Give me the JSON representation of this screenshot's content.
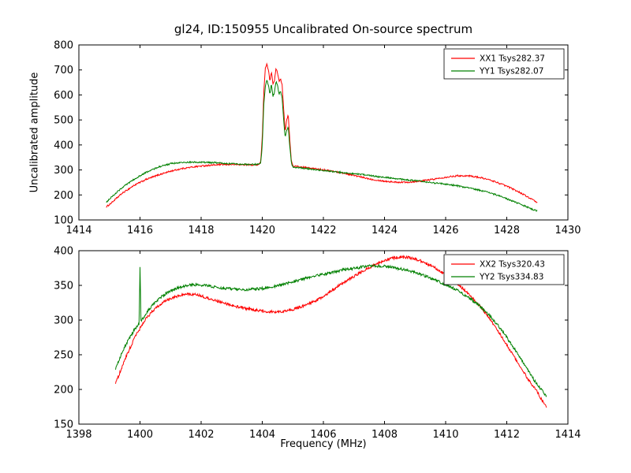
{
  "figure": {
    "title": "gl24, ID:150955 Uncalibrated On-source spectrum",
    "background": "#ffffff"
  },
  "chart_data": [
    {
      "type": "line",
      "title": "gl24, ID:150955 Uncalibrated On-source spectrum",
      "xlabel": "",
      "ylabel": "Uncalibrated amplitude",
      "xlim": [
        1414,
        1430
      ],
      "ylim": [
        100,
        800
      ],
      "xticks": [
        1414,
        1416,
        1418,
        1420,
        1422,
        1424,
        1426,
        1428,
        1430
      ],
      "yticks": [
        100,
        200,
        300,
        400,
        500,
        600,
        700,
        800
      ],
      "grid": false,
      "legend_position": "upper right",
      "series": [
        {
          "name": "XX1 Tsys282.37",
          "color": "#ff0000",
          "noise": 3,
          "points": [
            [
              1414.9,
              152
            ],
            [
              1415.1,
              172
            ],
            [
              1415.4,
              205
            ],
            [
              1415.8,
              238
            ],
            [
              1416.2,
              262
            ],
            [
              1416.6,
              280
            ],
            [
              1417.0,
              295
            ],
            [
              1417.4,
              306
            ],
            [
              1417.8,
              313
            ],
            [
              1418.2,
              318
            ],
            [
              1418.6,
              321
            ],
            [
              1419.0,
              322
            ],
            [
              1419.4,
              321
            ],
            [
              1419.7,
              320
            ],
            [
              1419.9,
              322
            ],
            [
              1419.95,
              335
            ],
            [
              1420.0,
              430
            ],
            [
              1420.05,
              610
            ],
            [
              1420.1,
              705
            ],
            [
              1420.15,
              722
            ],
            [
              1420.2,
              700
            ],
            [
              1420.25,
              655
            ],
            [
              1420.3,
              695
            ],
            [
              1420.35,
              645
            ],
            [
              1420.4,
              660
            ],
            [
              1420.45,
              705
            ],
            [
              1420.5,
              690
            ],
            [
              1420.55,
              655
            ],
            [
              1420.6,
              665
            ],
            [
              1420.65,
              640
            ],
            [
              1420.7,
              545
            ],
            [
              1420.75,
              450
            ],
            [
              1420.8,
              500
            ],
            [
              1420.85,
              520
            ],
            [
              1420.9,
              420
            ],
            [
              1420.95,
              340
            ],
            [
              1421.0,
              316
            ],
            [
              1421.3,
              311
            ],
            [
              1421.6,
              307
            ],
            [
              1422.0,
              301
            ],
            [
              1422.4,
              293
            ],
            [
              1422.8,
              284
            ],
            [
              1423.2,
              272
            ],
            [
              1423.6,
              262
            ],
            [
              1424.0,
              255
            ],
            [
              1424.4,
              251
            ],
            [
              1424.8,
              251
            ],
            [
              1425.2,
              256
            ],
            [
              1425.6,
              263
            ],
            [
              1426.0,
              271
            ],
            [
              1426.4,
              277
            ],
            [
              1426.8,
              276
            ],
            [
              1427.2,
              268
            ],
            [
              1427.6,
              254
            ],
            [
              1428.0,
              235
            ],
            [
              1428.4,
              212
            ],
            [
              1428.8,
              184
            ],
            [
              1429.0,
              168
            ]
          ]
        },
        {
          "name": "YY1 Tsys282.07",
          "color": "#008000",
          "noise": 3,
          "points": [
            [
              1414.9,
              172
            ],
            [
              1415.1,
              195
            ],
            [
              1415.4,
              228
            ],
            [
              1415.8,
              262
            ],
            [
              1416.2,
              290
            ],
            [
              1416.6,
              312
            ],
            [
              1417.0,
              325
            ],
            [
              1417.4,
              330
            ],
            [
              1417.8,
              331
            ],
            [
              1418.2,
              330
            ],
            [
              1418.6,
              328
            ],
            [
              1419.0,
              325
            ],
            [
              1419.4,
              323
            ],
            [
              1419.7,
              322
            ],
            [
              1419.9,
              323
            ],
            [
              1419.95,
              330
            ],
            [
              1420.0,
              400
            ],
            [
              1420.05,
              560
            ],
            [
              1420.1,
              635
            ],
            [
              1420.15,
              658
            ],
            [
              1420.2,
              640
            ],
            [
              1420.25,
              600
            ],
            [
              1420.3,
              645
            ],
            [
              1420.35,
              595
            ],
            [
              1420.4,
              610
            ],
            [
              1420.45,
              655
            ],
            [
              1420.5,
              640
            ],
            [
              1420.55,
              600
            ],
            [
              1420.6,
              615
            ],
            [
              1420.65,
              585
            ],
            [
              1420.7,
              500
            ],
            [
              1420.75,
              430
            ],
            [
              1420.8,
              460
            ],
            [
              1420.85,
              470
            ],
            [
              1420.9,
              395
            ],
            [
              1420.95,
              330
            ],
            [
              1421.0,
              312
            ],
            [
              1421.4,
              306
            ],
            [
              1421.8,
              300
            ],
            [
              1422.2,
              295
            ],
            [
              1422.6,
              290
            ],
            [
              1423.0,
              285
            ],
            [
              1423.4,
              279
            ],
            [
              1423.8,
              273
            ],
            [
              1424.2,
              268
            ],
            [
              1424.6,
              262
            ],
            [
              1425.0,
              257
            ],
            [
              1425.4,
              251
            ],
            [
              1425.8,
              246
            ],
            [
              1426.2,
              240
            ],
            [
              1426.6,
              232
            ],
            [
              1427.0,
              222
            ],
            [
              1427.4,
              210
            ],
            [
              1427.8,
              194
            ],
            [
              1428.2,
              175
            ],
            [
              1428.6,
              155
            ],
            [
              1428.9,
              140
            ],
            [
              1429.0,
              136
            ]
          ]
        }
      ]
    },
    {
      "type": "line",
      "title": "",
      "xlabel": "Frequency (MHz)",
      "ylabel": "",
      "xlim": [
        1398,
        1414
      ],
      "ylim": [
        150,
        400
      ],
      "xticks": [
        1398,
        1400,
        1402,
        1404,
        1406,
        1408,
        1410,
        1412,
        1414
      ],
      "yticks": [
        150,
        200,
        250,
        300,
        350,
        400
      ],
      "grid": false,
      "legend_position": "upper right",
      "series": [
        {
          "name": "XX2 Tsys320.43",
          "color": "#ff0000",
          "noise": 2,
          "points": [
            [
              1399.2,
              208
            ],
            [
              1399.5,
              243
            ],
            [
              1399.8,
              272
            ],
            [
              1400.1,
              296
            ],
            [
              1400.4,
              313
            ],
            [
              1400.7,
              324
            ],
            [
              1401.0,
              331
            ],
            [
              1401.3,
              336
            ],
            [
              1401.6,
              338
            ],
            [
              1401.9,
              336
            ],
            [
              1402.2,
              332
            ],
            [
              1402.5,
              328
            ],
            [
              1402.8,
              324
            ],
            [
              1403.1,
              320
            ],
            [
              1403.4,
              317
            ],
            [
              1403.7,
              315
            ],
            [
              1404.0,
              313
            ],
            [
              1404.3,
              312
            ],
            [
              1404.6,
              312
            ],
            [
              1404.9,
              314
            ],
            [
              1405.2,
              318
            ],
            [
              1405.5,
              323
            ],
            [
              1405.8,
              329
            ],
            [
              1406.1,
              337
            ],
            [
              1406.4,
              346
            ],
            [
              1406.7,
              355
            ],
            [
              1407.0,
              363
            ],
            [
              1407.3,
              371
            ],
            [
              1407.6,
              378
            ],
            [
              1407.9,
              384
            ],
            [
              1408.2,
              389
            ],
            [
              1408.5,
              391
            ],
            [
              1408.8,
              390
            ],
            [
              1409.1,
              387
            ],
            [
              1409.4,
              381
            ],
            [
              1409.7,
              374
            ],
            [
              1410.0,
              365
            ],
            [
              1410.3,
              355
            ],
            [
              1410.6,
              344
            ],
            [
              1410.9,
              331
            ],
            [
              1411.2,
              316
            ],
            [
              1411.5,
              298
            ],
            [
              1411.8,
              278
            ],
            [
              1412.1,
              257
            ],
            [
              1412.4,
              235
            ],
            [
              1412.7,
              215
            ],
            [
              1413.0,
              196
            ],
            [
              1413.3,
              174
            ]
          ]
        },
        {
          "name": "YY2 Tsys334.83",
          "color": "#008000",
          "noise": 2,
          "points": [
            [
              1399.2,
              230
            ],
            [
              1399.5,
              262
            ],
            [
              1399.8,
              285
            ],
            [
              1399.97,
              295
            ],
            [
              1400.0,
              380
            ],
            [
              1400.03,
              298
            ],
            [
              1400.3,
              316
            ],
            [
              1400.6,
              330
            ],
            [
              1400.9,
              340
            ],
            [
              1401.2,
              346
            ],
            [
              1401.5,
              350
            ],
            [
              1401.8,
              351
            ],
            [
              1402.1,
              350
            ],
            [
              1402.4,
              348
            ],
            [
              1402.7,
              346
            ],
            [
              1403.0,
              345
            ],
            [
              1403.3,
              344
            ],
            [
              1403.6,
              344
            ],
            [
              1403.9,
              345
            ],
            [
              1404.2,
              347
            ],
            [
              1404.5,
              350
            ],
            [
              1404.8,
              353
            ],
            [
              1405.1,
              356
            ],
            [
              1405.4,
              360
            ],
            [
              1405.7,
              363
            ],
            [
              1406.0,
              366
            ],
            [
              1406.3,
              369
            ],
            [
              1406.6,
              372
            ],
            [
              1406.9,
              374
            ],
            [
              1407.2,
              376
            ],
            [
              1407.5,
              378
            ],
            [
              1407.8,
              378
            ],
            [
              1408.1,
              377
            ],
            [
              1408.4,
              375
            ],
            [
              1408.7,
              372
            ],
            [
              1409.0,
              369
            ],
            [
              1409.3,
              364
            ],
            [
              1409.6,
              359
            ],
            [
              1409.9,
              353
            ],
            [
              1410.2,
              347
            ],
            [
              1410.5,
              340
            ],
            [
              1410.8,
              331
            ],
            [
              1411.1,
              321
            ],
            [
              1411.4,
              308
            ],
            [
              1411.7,
              293
            ],
            [
              1412.0,
              275
            ],
            [
              1412.3,
              255
            ],
            [
              1412.6,
              234
            ],
            [
              1412.9,
              213
            ],
            [
              1413.3,
              190
            ]
          ]
        }
      ]
    }
  ]
}
